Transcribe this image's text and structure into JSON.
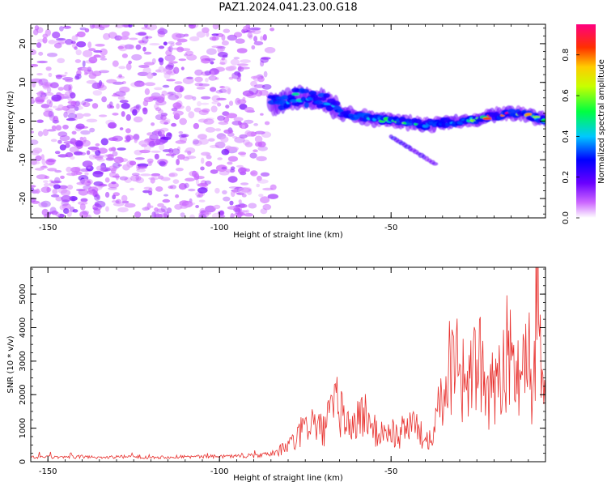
{
  "title": "PAZ1.2024.041.23.00.G18",
  "chart_data": [
    {
      "type": "heatmap",
      "xlabel": "Height of straight line (km)",
      "ylabel": "Frequency (Hz)",
      "xlim": [
        -155,
        -5
      ],
      "ylim": [
        -25,
        25
      ],
      "x_ticks": [
        -150,
        -100,
        -50
      ],
      "y_ticks": [
        20,
        10,
        0,
        -10,
        -20
      ],
      "colorbar": {
        "label": "Normalized spectral amplitude",
        "range": [
          0,
          0.95
        ],
        "ticks": [
          0.0,
          0.2,
          0.4,
          0.6,
          0.8
        ]
      },
      "description_points": [
        {
          "x": -83,
          "y": 4.5,
          "z": 0.45
        },
        {
          "x": -78,
          "y": 6.0,
          "z": 0.45
        },
        {
          "x": -70,
          "y": 5.5,
          "z": 0.4
        },
        {
          "x": -64,
          "y": 2.0,
          "z": 0.4
        },
        {
          "x": -55,
          "y": 0.5,
          "z": 0.45
        },
        {
          "x": -48,
          "y": 0.0,
          "z": 0.6
        },
        {
          "x": -40,
          "y": -1.0,
          "z": 0.45
        },
        {
          "x": -30,
          "y": 0.0,
          "z": 0.4
        },
        {
          "x": -22,
          "y": 1.0,
          "z": 0.75
        },
        {
          "x": -15,
          "y": 2.0,
          "z": 0.9
        },
        {
          "x": -10,
          "y": 1.5,
          "z": 0.7
        },
        {
          "x": -6,
          "y": 0.5,
          "z": 0.55
        }
      ],
      "grid": false
    },
    {
      "type": "line",
      "xlabel": "Height of straight line (km)",
      "ylabel": "SNR (10 * v/v)",
      "xlim": [
        -155,
        -5
      ],
      "ylim": [
        0,
        5800
      ],
      "x_ticks": [
        -150,
        -100,
        -50
      ],
      "y_ticks": [
        0,
        1000,
        2000,
        3000,
        4000,
        5000
      ],
      "color": "#e8322f",
      "series": [
        {
          "x": [
            -155,
            -150,
            -145,
            -140,
            -135,
            -130,
            -125,
            -120,
            -115,
            -110,
            -105,
            -100,
            -95,
            -90,
            -87,
            -84,
            -82,
            -80,
            -78,
            -76,
            -74,
            -72,
            -70,
            -68,
            -66,
            -64,
            -62,
            -60,
            -58,
            -56,
            -54,
            -52,
            -50,
            -48,
            -46,
            -44,
            -42,
            -40,
            -38,
            -36,
            -34,
            -32,
            -31,
            -30,
            -28,
            -26,
            -24,
            -22,
            -20,
            -18,
            -16,
            -14,
            -12,
            -10,
            -9,
            -8,
            -7,
            -6,
            -5
          ],
          "y": [
            130,
            140,
            120,
            150,
            130,
            140,
            150,
            130,
            140,
            150,
            150,
            160,
            170,
            180,
            200,
            260,
            350,
            500,
            600,
            900,
            1200,
            1100,
            900,
            1300,
            1700,
            1400,
            1000,
            1200,
            1500,
            1100,
            800,
            900,
            950,
            700,
            1000,
            1200,
            900,
            600,
            1000,
            1800,
            2500,
            3200,
            4300,
            2600,
            2400,
            2600,
            3000,
            1600,
            2300,
            2900,
            3300,
            2500,
            3000,
            3800,
            1400,
            3900,
            5800,
            2800,
            1300
          ]
        }
      ],
      "grid": false
    }
  ]
}
